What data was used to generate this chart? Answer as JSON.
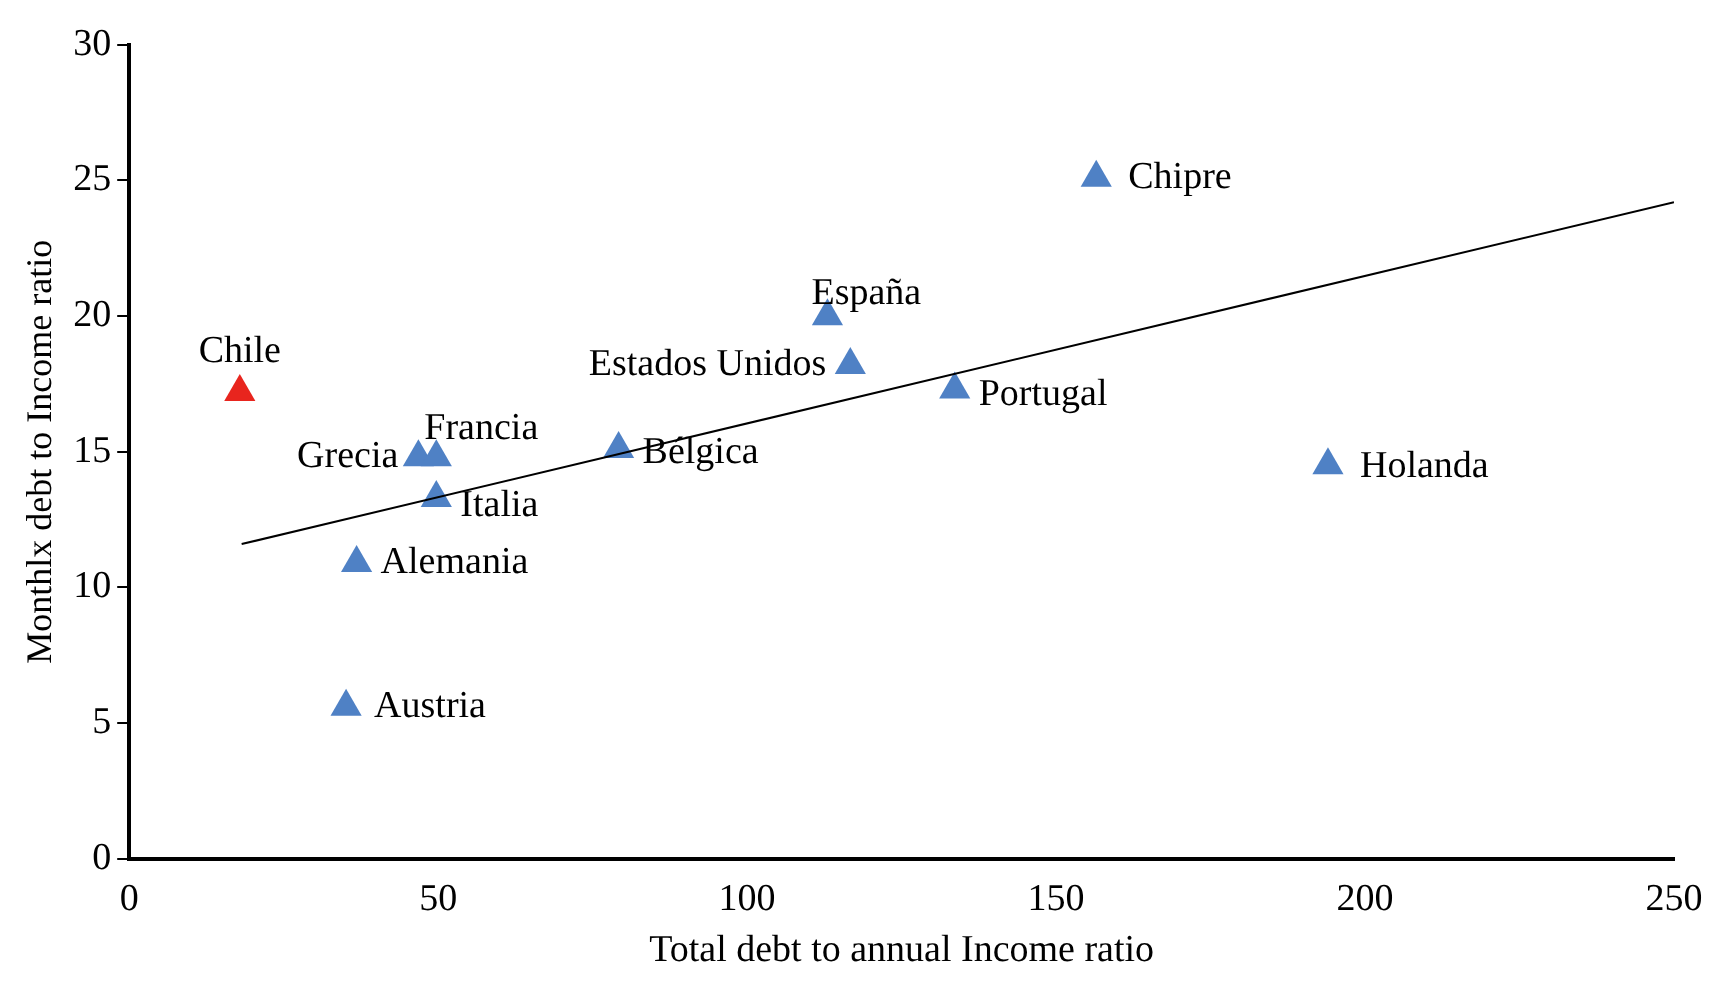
{
  "chart_data": {
    "type": "scatter",
    "xlabel": "Total debt to annual Income ratio",
    "ylabel": "Monthlx debt to Income ratio",
    "xlim": [
      0,
      250
    ],
    "ylim": [
      0,
      30
    ],
    "xticks": [
      0,
      50,
      100,
      150,
      200,
      250
    ],
    "yticks": [
      0,
      5,
      10,
      15,
      20,
      25,
      30
    ],
    "grid": false,
    "legend": false,
    "marker": "triangle",
    "series": [
      {
        "type": "scatter",
        "x": [
          17.9,
          46.8,
          49.7,
          49.7,
          36.8,
          35.1,
          79.2,
          113,
          116.7,
          133.6,
          156.5,
          194
        ],
        "values": [
          17.2,
          14.8,
          14.8,
          13.3,
          10.9,
          5.6,
          15.1,
          20.0,
          18.2,
          17.3,
          25.1,
          14.5
        ],
        "colors": [
          "#e8251e",
          "#4f81c5",
          "#4f81c5",
          "#4f81c5",
          "#4f81c5",
          "#4f81c5",
          "#4f81c5",
          "#4f81c5",
          "#4f81c5",
          "#4f81c5",
          "#4f81c5",
          "#4f81c5"
        ]
      },
      {
        "type": "line",
        "x": [
          18.2,
          250
        ],
        "values": [
          11.6,
          24.2
        ],
        "color": "#000000",
        "line_style": "solid",
        "marker": "none"
      }
    ],
    "annotations": [
      {
        "text": "Chile",
        "x": 17.9,
        "y": 17.2
      },
      {
        "text": "Grecia",
        "x": 46.8,
        "y": 14.8
      },
      {
        "text": "Francia",
        "x": 49.7,
        "y": 14.8
      },
      {
        "text": "Italia",
        "x": 49.7,
        "y": 13.3
      },
      {
        "text": "Alemania",
        "x": 36.8,
        "y": 10.9
      },
      {
        "text": "Austria",
        "x": 35.1,
        "y": 5.6
      },
      {
        "text": "Bélgica",
        "x": 79.2,
        "y": 15.1
      },
      {
        "text": "España",
        "x": 113,
        "y": 20.0
      },
      {
        "text": "Estados Unidos",
        "x": 116.7,
        "y": 18.2
      },
      {
        "text": "Portugal",
        "x": 133.6,
        "y": 17.3
      },
      {
        "text": "Chipre",
        "x": 156.5,
        "y": 25.1
      },
      {
        "text": "Holanda",
        "x": 194,
        "y": 14.5
      }
    ]
  }
}
